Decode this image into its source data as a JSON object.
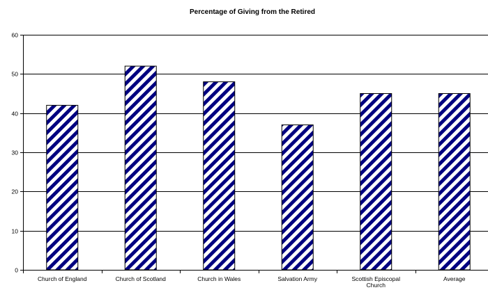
{
  "chart_data": {
    "type": "bar",
    "title": "Percentage of Giving from the Retired",
    "xlabel": "",
    "ylabel": "",
    "categories": [
      "Church of England",
      "Church of Scotland",
      "Church in Wales",
      "Salvation Army",
      "Scottish Episcopal Church",
      "Average"
    ],
    "category_label_lines": [
      [
        "Church of England"
      ],
      [
        "Church of Scotland"
      ],
      [
        "Church in Wales"
      ],
      [
        "Salvation Army"
      ],
      [
        "Scottish Episcopal",
        "Church"
      ],
      [
        "Average"
      ]
    ],
    "values": [
      42,
      52,
      48,
      37,
      45,
      45
    ],
    "ylim": [
      0,
      60
    ],
    "yticks": [
      0,
      10,
      20,
      30,
      40,
      50,
      60
    ],
    "grid": true,
    "legend": "none",
    "bar_pattern": "diagonal-stripes",
    "colors": {
      "bar_stripe": "#000080",
      "bar_background": "#ffffff",
      "bar_outline": "#000000",
      "grid": "#000000",
      "axis": "#000000",
      "text": "#000000"
    }
  }
}
